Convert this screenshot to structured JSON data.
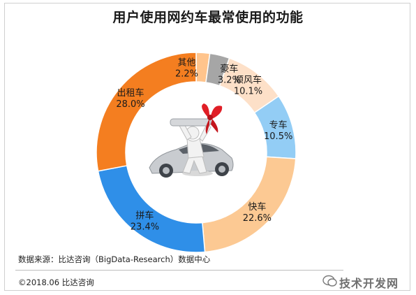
{
  "chart_data": {
    "type": "pie",
    "title": "用户使用网约车最常使用的功能",
    "categories": [
      "其他",
      "豪车",
      "顺风车",
      "专车",
      "快车",
      "拼车",
      "出租车"
    ],
    "values": [
      2.2,
      3.2,
      10.1,
      10.5,
      22.6,
      23.4,
      28.0
    ],
    "value_labels": [
      "2.2%",
      "3.2%",
      "10.1%",
      "10.5%",
      "22.6%",
      "23.4%",
      "28.0%"
    ],
    "colors": [
      "#ffc48c",
      "#a6a6a6",
      "#fde0c8",
      "#93cdf5",
      "#fcc993",
      "#2f8fe8",
      "#f47e20"
    ],
    "hole": "donut",
    "legend": "none"
  },
  "footer": {
    "source": "数据来源：比达咨询（BigData-Research）数据中心",
    "copyright": "©2018.06 比达咨询"
  },
  "watermark": {
    "icon": "wechat-icon",
    "text": "技术开发网"
  }
}
